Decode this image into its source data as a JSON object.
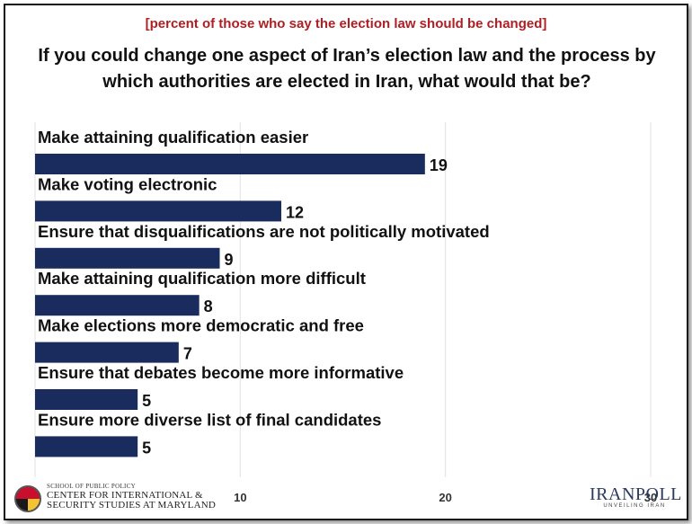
{
  "subtitle": "[percent of those who say the election law should be changed]",
  "title": "If you could change one aspect of Iran’s election law and the process by which authorities are elected in Iran, what would that be?",
  "footer": {
    "umd_small": "SCHOOL OF PUBLIC POLICY",
    "umd_line1": "CENTER FOR INTERNATIONAL &",
    "umd_line2": "SECURITY STUDIES AT MARYLAND",
    "iranpoll_name": "IRANPOLL",
    "iranpoll_tag": "UNVEILING IRAN"
  },
  "colors": {
    "bar": "#1a2b5e",
    "subtitle": "#b01e23"
  },
  "chart_data": {
    "type": "bar",
    "orientation": "horizontal",
    "categories": [
      "Make attaining qualification easier",
      "Make voting electronic",
      "Ensure that disqualifications are not politically motivated",
      "Make attaining qualification more difficult",
      "Make elections more democratic and free",
      "Ensure that debates become more informative",
      "Ensure more diverse list of final candidates"
    ],
    "values": [
      19,
      12,
      9,
      8,
      7,
      5,
      5
    ],
    "xlim": [
      0,
      30
    ],
    "xticks": [
      10,
      20,
      30
    ],
    "grid": true,
    "legend": "none"
  }
}
